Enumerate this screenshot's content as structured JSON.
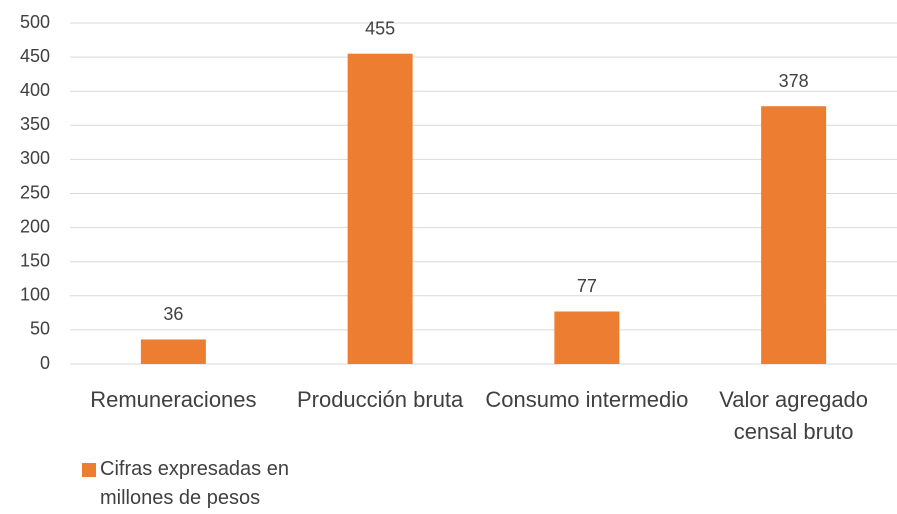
{
  "chart_data": {
    "type": "bar",
    "categories": [
      "Remuneraciones",
      "Producción bruta",
      "Consumo intermedio",
      "Valor agregado censal bruto"
    ],
    "series": [
      {
        "name": "Cifras expresadas en millones de pesos",
        "color": "#ed7d31",
        "values": [
          36,
          455,
          77,
          378
        ]
      }
    ],
    "ylim": [
      0,
      500
    ],
    "yticks": [
      0,
      50,
      100,
      150,
      200,
      250,
      300,
      350,
      400,
      450,
      500
    ],
    "grid": true,
    "legend": "bottom-left"
  }
}
